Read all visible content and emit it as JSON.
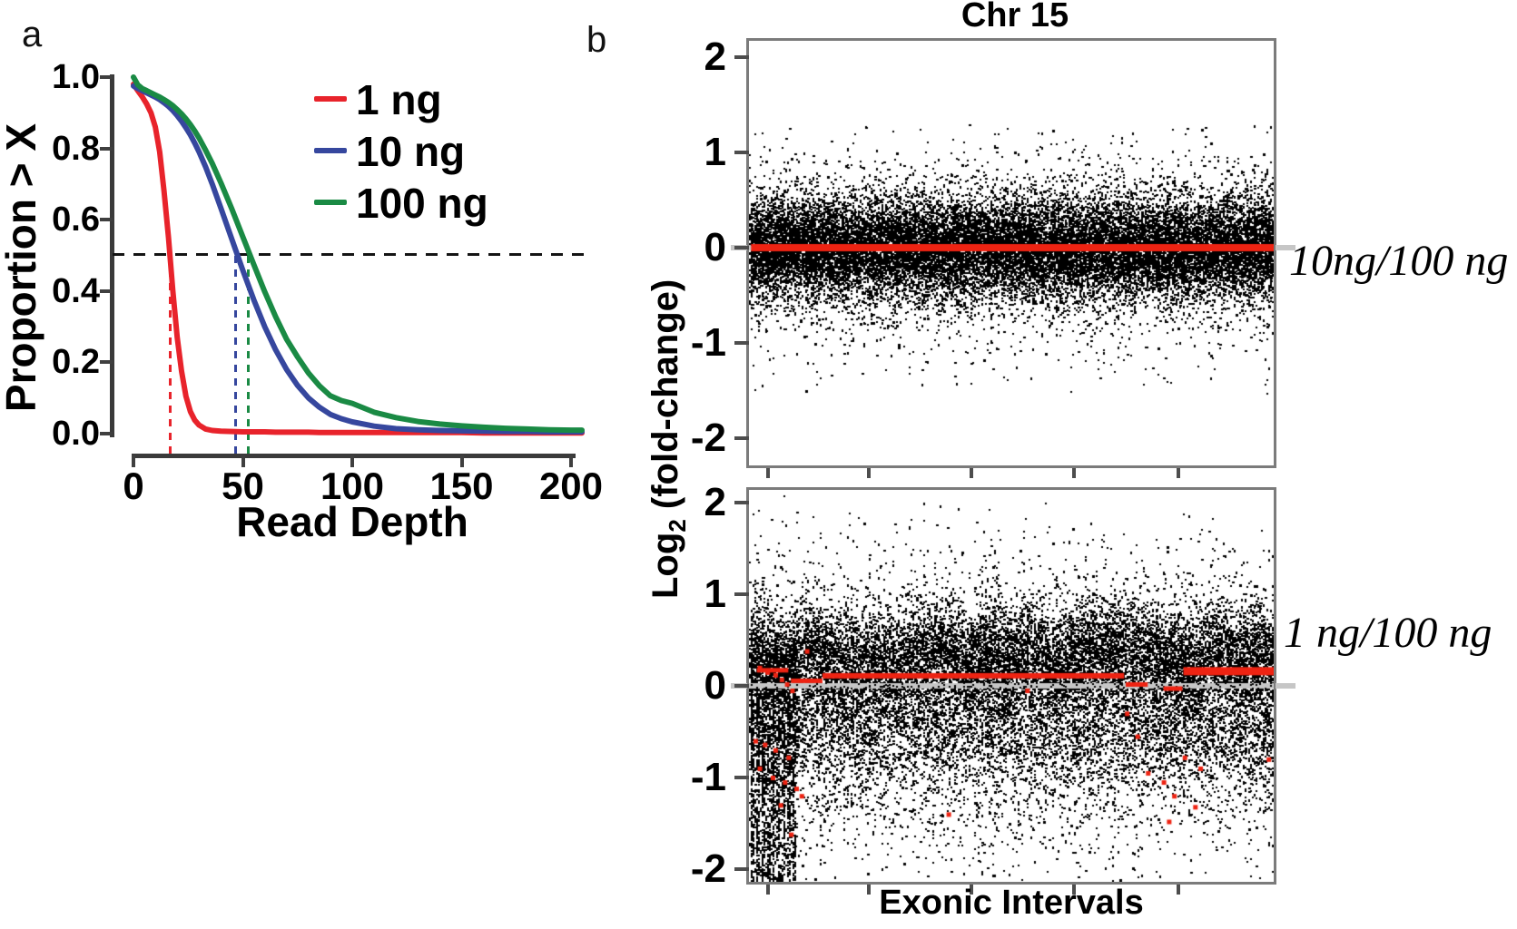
{
  "panel_labels": {
    "a": "a",
    "b": "b"
  },
  "chart_data": [
    {
      "id": "read_depth_survival",
      "type": "line",
      "title": "",
      "xlabel": "Read Depth",
      "ylabel": "Proportion > X",
      "xlim": [
        0,
        205
      ],
      "ylim": [
        0,
        1.0
      ],
      "x_ticks": [
        0,
        50,
        100,
        150,
        200
      ],
      "y_ticks": [
        1.0,
        0.8,
        0.6,
        0.4,
        0.2,
        0.0
      ],
      "grid": false,
      "legend_position": "top-right",
      "reference": {
        "h_line_y": 0.5,
        "h_line_color": "#141414",
        "v_lines": [
          {
            "x": 17,
            "color": "#e8232b"
          },
          {
            "x": 46.5,
            "color": "#36479e"
          },
          {
            "x": 52.5,
            "color": "#1a8a44"
          }
        ]
      },
      "x": [
        0,
        2,
        4,
        6,
        8,
        10,
        12,
        14,
        16,
        18,
        20,
        22,
        24,
        26,
        28,
        30,
        33,
        36,
        40,
        45,
        50,
        55,
        60,
        65,
        70,
        75,
        80,
        85,
        90,
        95,
        100,
        110,
        120,
        130,
        140,
        150,
        160,
        170,
        180,
        190,
        200,
        205
      ],
      "series": [
        {
          "name": "1 ng",
          "color": "#e8232b",
          "y": [
            0.98,
            0.962,
            0.945,
            0.925,
            0.9,
            0.86,
            0.79,
            0.68,
            0.55,
            0.4,
            0.27,
            0.175,
            0.105,
            0.062,
            0.038,
            0.024,
            0.013,
            0.009,
            0.007,
            0.006,
            0.005,
            0.005,
            0.005,
            0.004,
            0.004,
            0.004,
            0.004,
            0.003,
            0.003,
            0.003,
            0.003,
            0.003,
            0.003,
            0.003,
            0.003,
            0.003,
            0.002,
            0.002,
            0.002,
            0.002,
            0.002,
            0.002
          ]
        },
        {
          "name": "10 ng",
          "color": "#36479e",
          "y": [
            0.975,
            0.968,
            0.962,
            0.956,
            0.95,
            0.944,
            0.937,
            0.928,
            0.918,
            0.906,
            0.892,
            0.876,
            0.858,
            0.838,
            0.815,
            0.79,
            0.748,
            0.7,
            0.632,
            0.545,
            0.458,
            0.375,
            0.3,
            0.235,
            0.18,
            0.135,
            0.1,
            0.074,
            0.054,
            0.042,
            0.033,
            0.021,
            0.014,
            0.011,
            0.009,
            0.008,
            0.007,
            0.006,
            0.006,
            0.005,
            0.005,
            0.005
          ]
        },
        {
          "name": "100 ng",
          "color": "#1a8a44",
          "y": [
            1.0,
            0.978,
            0.968,
            0.962,
            0.956,
            0.95,
            0.944,
            0.937,
            0.929,
            0.92,
            0.909,
            0.897,
            0.883,
            0.867,
            0.849,
            0.829,
            0.795,
            0.758,
            0.703,
            0.63,
            0.552,
            0.474,
            0.398,
            0.328,
            0.265,
            0.215,
            0.17,
            0.134,
            0.106,
            0.093,
            0.085,
            0.06,
            0.045,
            0.034,
            0.027,
            0.022,
            0.018,
            0.015,
            0.013,
            0.011,
            0.01,
            0.01
          ]
        }
      ]
    },
    {
      "id": "chr15_fold_change",
      "type": "scatter",
      "title": "Chr 15",
      "xlabel": "Exonic Intervals",
      "ylabel": "Log2 (fold-change)",
      "ylabel_parts": {
        "pre": "Log",
        "sub": "2",
        "post": " (fold-change)"
      },
      "ylim": [
        -2.3,
        2.2
      ],
      "y_ticks": [
        2,
        1,
        0,
        -1,
        -2
      ],
      "x_tick_count": 5,
      "point_color": "#000000",
      "zero_line_color": "#c6c6c6",
      "red_color": "#ee2312",
      "panels": [
        {
          "label": "10ng/100 ng",
          "synthesis": {
            "seed": 7,
            "n": 22000,
            "clip": [
              -1.55,
              1.3
            ],
            "spiky": false,
            "left_band": null,
            "components": [
              {
                "frac": 0.8,
                "mean": 0.0,
                "sd": 0.26
              },
              {
                "frac": 0.16,
                "mean": 0.0,
                "sd": 0.45
              },
              {
                "frac": 0.04,
                "mean": -0.05,
                "sd": 0.65
              }
            ]
          },
          "red_segments": [
            {
              "x0": 0.004,
              "x1": 1.0,
              "y": 0,
              "w": 8
            }
          ],
          "red_points": []
        },
        {
          "label": "1 ng/100 ng",
          "synthesis": {
            "seed": 11,
            "n": 20000,
            "clip": [
              -2.2,
              2.1
            ],
            "spiky": true,
            "left_band": {
              "x_max": 0.09,
              "frac": 0.085,
              "v_min": -2.15,
              "v_max": 0.4,
              "columns": 9
            },
            "components": [
              {
                "frac": 0.42,
                "mean": 0.34,
                "sd": 0.26
              },
              {
                "frac": 0.16,
                "mean": 0.15,
                "sd": 0.5
              },
              {
                "frac": 0.2,
                "mean": -0.4,
                "sd": 0.35
              },
              {
                "frac": 0.07,
                "mean": -0.95,
                "sd": 0.5
              },
              {
                "frac": 0.15,
                "mean": -0.1,
                "sd": 0.85
              }
            ]
          },
          "red_segments": [
            {
              "x0": 0.015,
              "x1": 0.075,
              "y": 0.17,
              "w": 5
            },
            {
              "x0": 0.08,
              "x1": 0.14,
              "y": 0.055,
              "w": 5
            },
            {
              "x0": 0.14,
              "x1": 0.715,
              "y": 0.11,
              "w": 6
            },
            {
              "x0": 0.718,
              "x1": 0.76,
              "y": 0.015,
              "w": 5
            },
            {
              "x0": 0.79,
              "x1": 0.826,
              "y": -0.03,
              "w": 5
            },
            {
              "x0": 0.828,
              "x1": 1.0,
              "y": 0.16,
              "w": 9
            }
          ],
          "red_points": [
            [
              0.02,
              0.2
            ],
            [
              0.035,
              0.15
            ],
            [
              0.05,
              0.12
            ],
            [
              0.062,
              0.07
            ],
            [
              0.072,
              0.02
            ],
            [
              0.082,
              -0.05
            ],
            [
              0.012,
              -0.6
            ],
            [
              0.03,
              -0.64
            ],
            [
              0.05,
              -0.7
            ],
            [
              0.075,
              -0.78
            ],
            [
              0.02,
              -0.9
            ],
            [
              0.045,
              -1.0
            ],
            [
              0.068,
              -1.05
            ],
            [
              0.09,
              -1.12
            ],
            [
              0.1,
              -1.2
            ],
            [
              0.06,
              -1.3
            ],
            [
              0.08,
              -1.62
            ],
            [
              0.11,
              0.38
            ],
            [
              0.38,
              -1.4
            ],
            [
              0.53,
              -0.05
            ],
            [
              0.72,
              -0.3
            ],
            [
              0.74,
              -0.55
            ],
            [
              0.76,
              -0.95
            ],
            [
              0.79,
              -1.05
            ],
            [
              0.81,
              -1.2
            ],
            [
              0.83,
              -0.78
            ],
            [
              0.85,
              -1.32
            ],
            [
              0.8,
              -1.48
            ],
            [
              0.86,
              -0.9
            ],
            [
              0.99,
              -0.8
            ]
          ]
        }
      ]
    }
  ]
}
